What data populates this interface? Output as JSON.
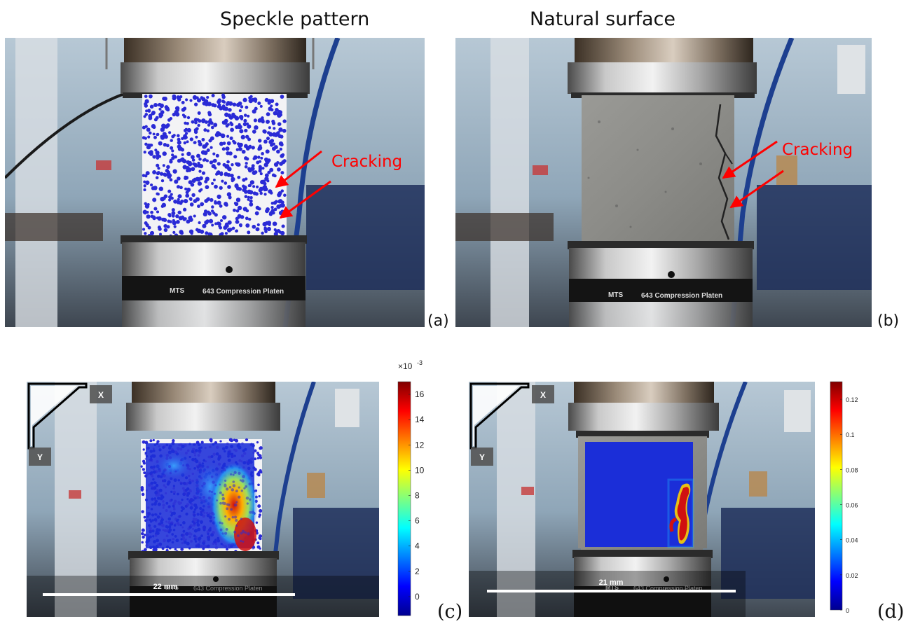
{
  "columns": {
    "left_title": "Speckle pattern",
    "right_title": "Natural surface"
  },
  "panels": {
    "a": {
      "label": "(a)",
      "annotation": "Cracking",
      "platen_text": "643 Compression Platen",
      "brand": "MTS"
    },
    "b": {
      "label": "(b)",
      "annotation": "Cracking",
      "platen_text": "643 Compression Platen",
      "brand": "MTS"
    },
    "c": {
      "label": "(c)",
      "axis_x": "X",
      "axis_y": "Y",
      "scale_text": "22 mm",
      "platen_text": "643 Compression Platen",
      "brand": "MTS",
      "colorbar": {
        "multiplier": "×10",
        "exponent": "-3",
        "ticks": [
          "16",
          "14",
          "12",
          "10",
          "8",
          "6",
          "4",
          "2",
          "0"
        ],
        "tick_values": [
          16,
          14,
          12,
          10,
          8,
          6,
          4,
          2,
          0
        ],
        "min": -1.5,
        "max": 17
      }
    },
    "d": {
      "label": "(d)",
      "axis_x": "X",
      "axis_y": "Y",
      "scale_text": "21 mm",
      "platen_text": "643 Compression Platen",
      "brand": "MTS",
      "colorbar": {
        "ticks": [
          "0.12",
          "0.1",
          "0.08",
          "0.06",
          "0.04",
          "0.02",
          "0"
        ],
        "tick_values": [
          0.12,
          0.1,
          0.08,
          0.06,
          0.04,
          0.02,
          0
        ],
        "min": 0,
        "max": 0.13
      }
    }
  },
  "colors": {
    "annotation": "#ff0000",
    "speckle": "#2a2ad6",
    "strain_low": "#1b2ed8",
    "strain_high": "#d01010"
  }
}
